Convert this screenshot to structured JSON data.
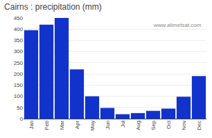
{
  "chart_data": {
    "type": "bar",
    "title": "Cairns : precipitation (mm)",
    "categories": [
      "Jan",
      "Feb",
      "Mar",
      "Apr",
      "May",
      "Jun",
      "Jul",
      "Aug",
      "Sep",
      "Oct",
      "Nov",
      "Dec"
    ],
    "values": [
      395,
      420,
      450,
      220,
      100,
      48,
      20,
      25,
      35,
      45,
      98,
      190
    ],
    "color": "#1133cc",
    "ylim": [
      0,
      450
    ],
    "yticks": [
      0,
      50,
      100,
      150,
      200,
      250,
      300,
      350,
      400,
      450
    ],
    "grid": true,
    "annotations": [
      "www.allmetsat.com"
    ]
  }
}
